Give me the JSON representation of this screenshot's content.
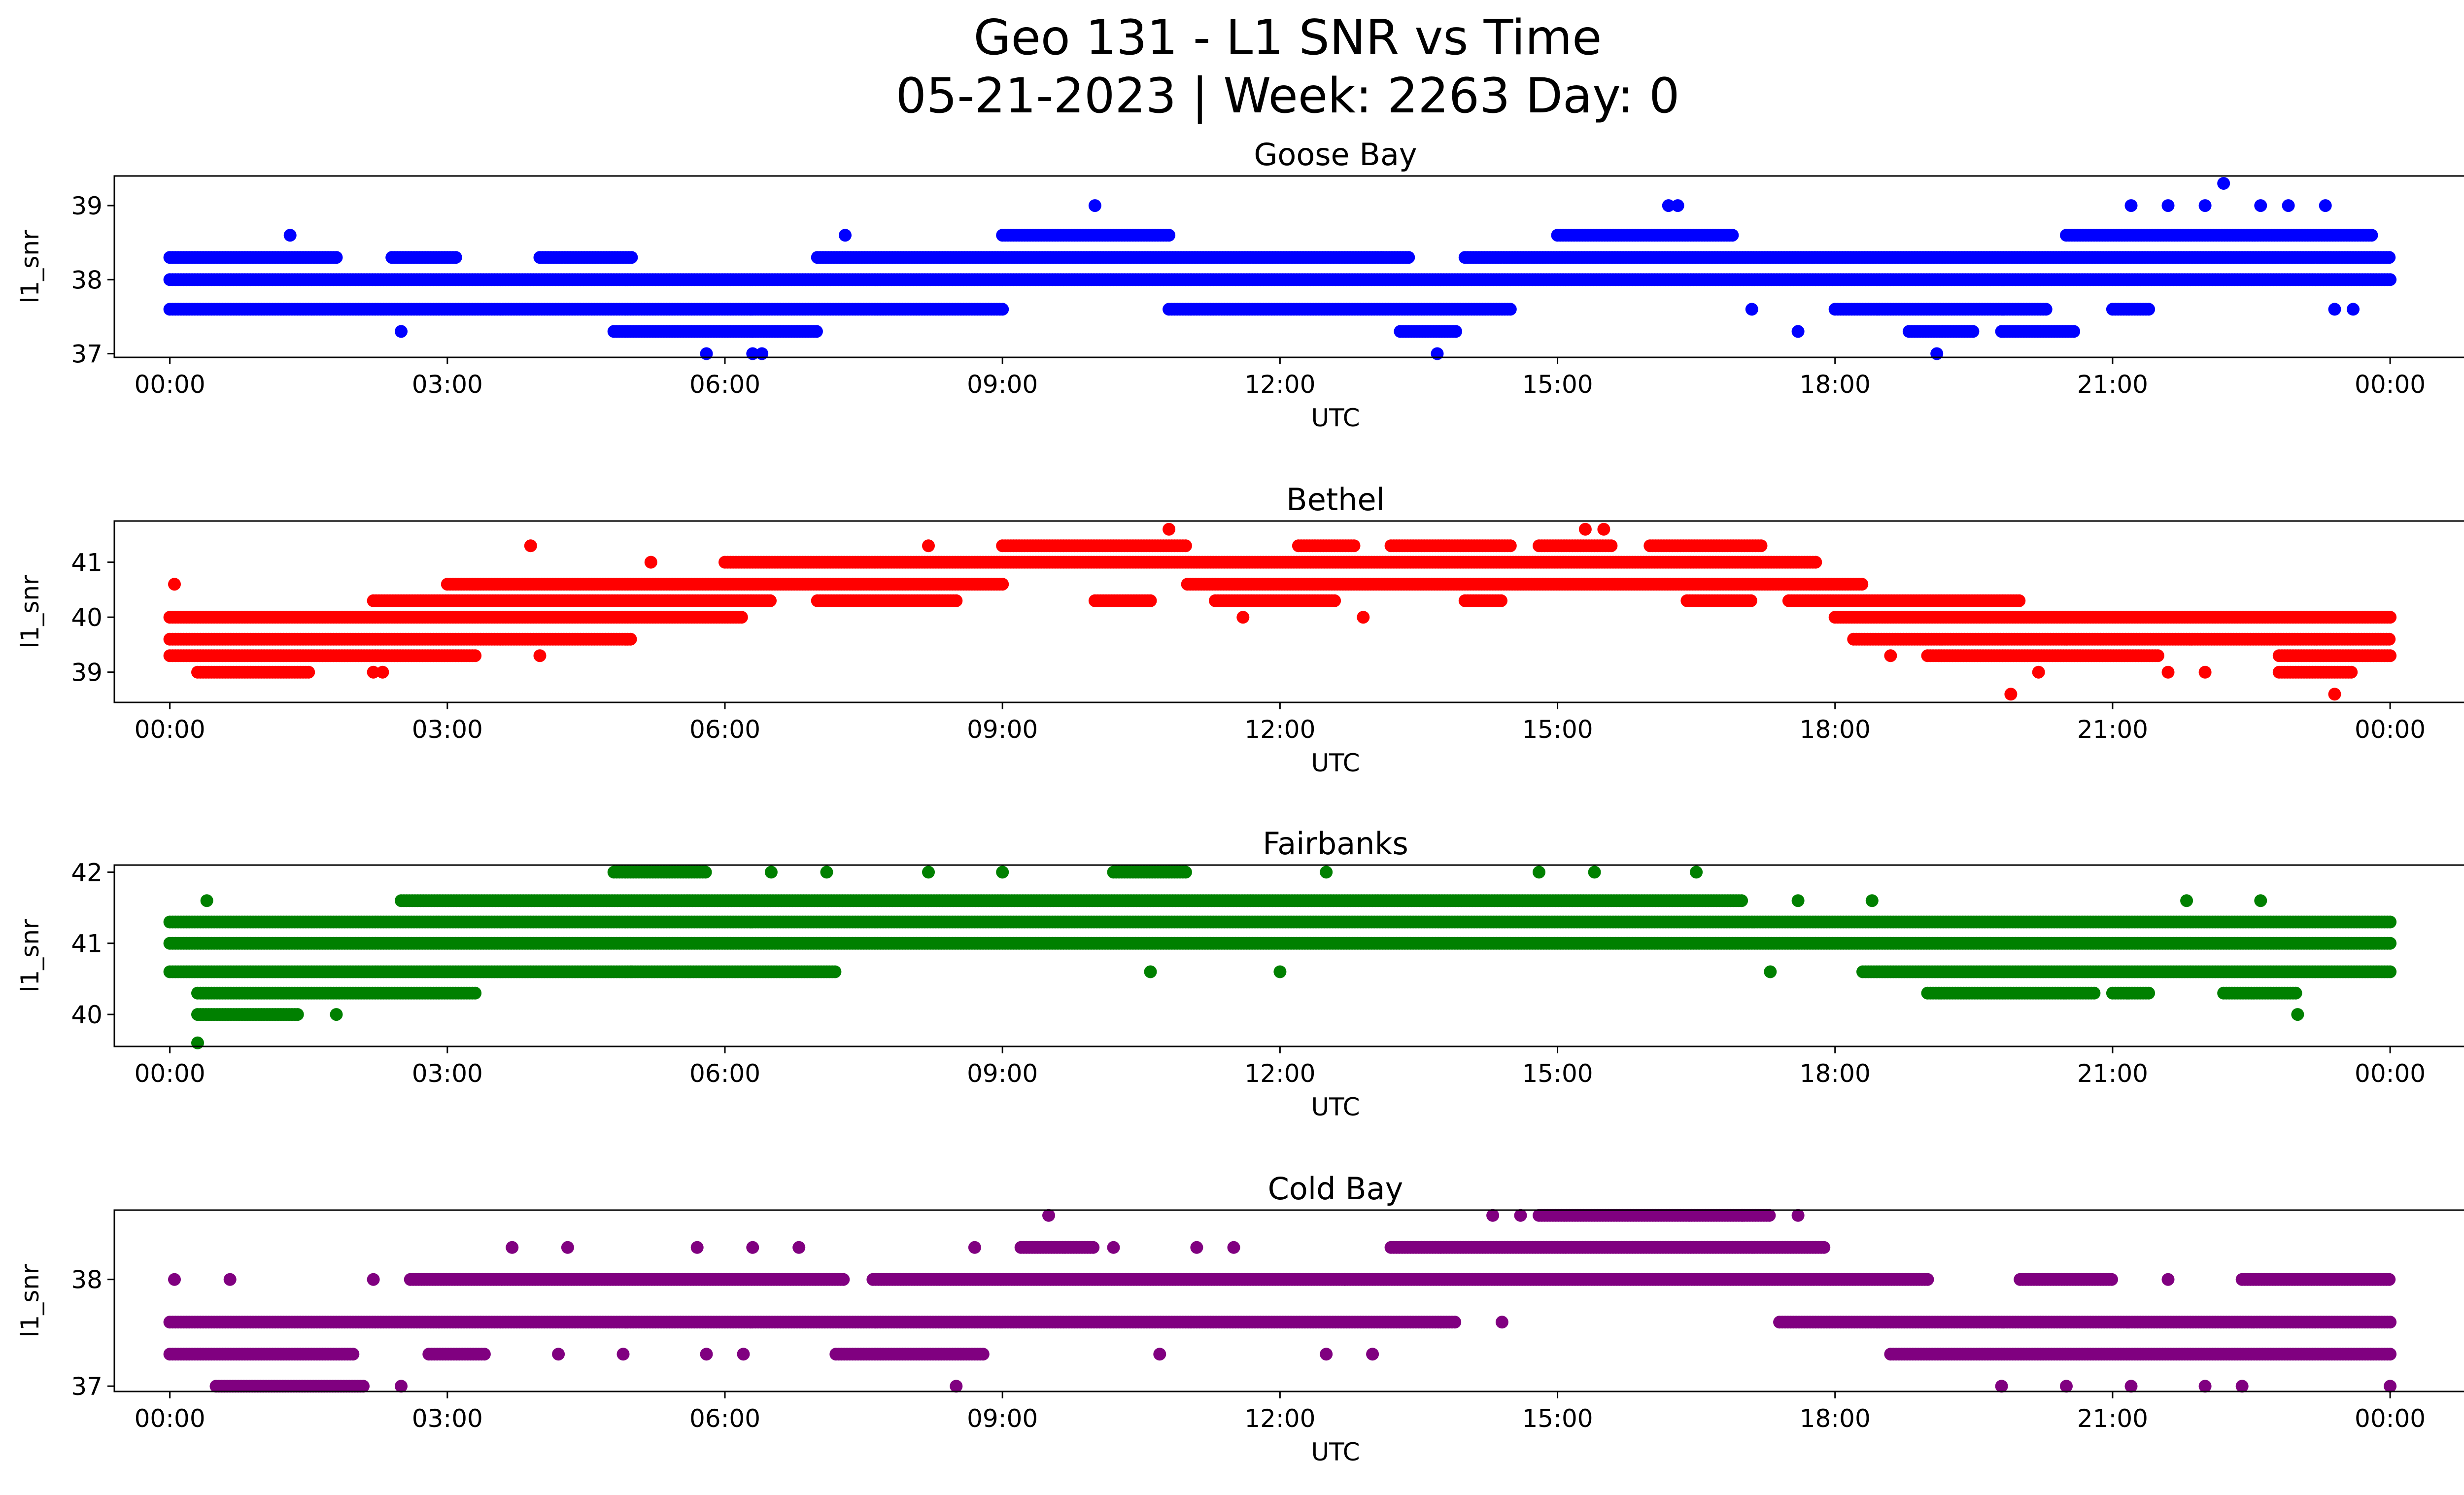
{
  "figure": {
    "title_line1": "Geo 131 - L1 SNR vs Time",
    "title_line2": "05-21-2023 | Week: 2263 Day: 0"
  },
  "chart_data": [
    {
      "type": "scatter",
      "title": "Goose Bay",
      "xlabel": "UTC",
      "ylabel": "l1_snr",
      "color": "#0000ff",
      "x_ticks": [
        "00:00",
        "03:00",
        "06:00",
        "09:00",
        "12:00",
        "15:00",
        "18:00",
        "21:00",
        "00:00"
      ],
      "xlim_hours": [
        -0.6,
        25.8
      ],
      "ylim": [
        36.95,
        39.4
      ],
      "y_ticks": [
        37,
        38,
        39
      ],
      "bands": [
        {
          "y": 38.0,
          "segments": [
            [
              0,
              24
            ]
          ]
        },
        {
          "y": 38.3,
          "segments": [
            [
              0,
              1.8
            ],
            [
              2.4,
              3.1
            ],
            [
              4.0,
              5.0
            ],
            [
              7.0,
              13.4
            ],
            [
              14.0,
              24
            ]
          ]
        },
        {
          "y": 37.6,
          "segments": [
            [
              0,
              9.0
            ],
            [
              10.8,
              14.5
            ],
            [
              18.0,
              20.3
            ],
            [
              21.0,
              21.4
            ]
          ]
        },
        {
          "y": 38.6,
          "segments": [
            [
              9.0,
              10.8
            ],
            [
              15.0,
              16.9
            ],
            [
              20.5,
              23.8
            ]
          ]
        },
        {
          "y": 37.3,
          "segments": [
            [
              4.8,
              7.0
            ],
            [
              13.3,
              13.9
            ],
            [
              18.8,
              19.5
            ],
            [
              19.8,
              20.6
            ]
          ]
        }
      ],
      "outliers": [
        [
          1.3,
          38.6
        ],
        [
          2.5,
          37.3
        ],
        [
          6.3,
          37.3
        ],
        [
          5.8,
          37.0
        ],
        [
          6.3,
          37.0
        ],
        [
          6.4,
          37.0
        ],
        [
          7.3,
          38.6
        ],
        [
          10.0,
          39.0
        ],
        [
          13.1,
          38.3
        ],
        [
          13.7,
          37.0
        ],
        [
          16.2,
          39.0
        ],
        [
          16.3,
          39.0
        ],
        [
          17.1,
          37.6
        ],
        [
          17.6,
          37.3
        ],
        [
          19.1,
          37.0
        ],
        [
          21.2,
          39.0
        ],
        [
          21.6,
          39.0
        ],
        [
          22.0,
          39.0
        ],
        [
          22.2,
          39.3
        ],
        [
          22.6,
          39.0
        ],
        [
          22.9,
          39.0
        ],
        [
          23.4,
          37.6
        ],
        [
          23.6,
          37.6
        ],
        [
          23.3,
          39.0
        ]
      ]
    },
    {
      "type": "scatter",
      "title": "Bethel",
      "xlabel": "UTC",
      "ylabel": "l1_snr",
      "color": "#ff0000",
      "x_ticks": [
        "00:00",
        "03:00",
        "06:00",
        "09:00",
        "12:00",
        "15:00",
        "18:00",
        "21:00",
        "00:00"
      ],
      "xlim_hours": [
        -0.6,
        25.8
      ],
      "ylim": [
        38.45,
        41.75
      ],
      "y_ticks": [
        39,
        40,
        41
      ],
      "bands": [
        {
          "y": 39.6,
          "segments": [
            [
              0,
              5.0
            ],
            [
              18.2,
              24
            ]
          ]
        },
        {
          "y": 40.0,
          "segments": [
            [
              0,
              6.2
            ],
            [
              18.0,
              24
            ]
          ]
        },
        {
          "y": 39.3,
          "segments": [
            [
              0,
              3.3
            ],
            [
              19.0,
              21.5
            ],
            [
              22.8,
              24
            ]
          ]
        },
        {
          "y": 40.3,
          "segments": [
            [
              2.2,
              6.5
            ],
            [
              7.0,
              8.5
            ],
            [
              17.5,
              20.0
            ]
          ]
        },
        {
          "y": 40.6,
          "segments": [
            [
              3.0,
              9.0
            ],
            [
              11.0,
              18.3
            ]
          ]
        },
        {
          "y": 41.0,
          "segments": [
            [
              6.0,
              17.8
            ]
          ]
        },
        {
          "y": 41.3,
          "segments": [
            [
              9.0,
              11.0
            ],
            [
              12.2,
              12.8
            ],
            [
              13.2,
              14.5
            ],
            [
              14.8,
              15.6
            ],
            [
              16.0,
              17.2
            ]
          ]
        },
        {
          "y": 40.3,
          "segments": [
            [
              10.0,
              10.6
            ],
            [
              11.3,
              12.6
            ],
            [
              14.0,
              14.4
            ],
            [
              16.4,
              17.1
            ]
          ]
        },
        {
          "y": 39.0,
          "segments": [
            [
              0.3,
              1.5
            ],
            [
              22.8,
              23.6
            ]
          ]
        }
      ],
      "outliers": [
        [
          0.05,
          40.6
        ],
        [
          3.9,
          41.3
        ],
        [
          4.0,
          39.3
        ],
        [
          5.2,
          41.0
        ],
        [
          8.2,
          41.3
        ],
        [
          10.8,
          41.6
        ],
        [
          11.6,
          40.0
        ],
        [
          12.9,
          40.0
        ],
        [
          15.3,
          41.6
        ],
        [
          15.5,
          41.6
        ],
        [
          18.6,
          39.3
        ],
        [
          19.9,
          38.6
        ],
        [
          20.2,
          39.0
        ],
        [
          23.4,
          38.6
        ],
        [
          21.6,
          39.0
        ],
        [
          22.0,
          39.0
        ],
        [
          2.2,
          39.0
        ],
        [
          2.3,
          39.0
        ]
      ]
    },
    {
      "type": "scatter",
      "title": "Fairbanks",
      "xlabel": "UTC",
      "ylabel": "l1_snr",
      "color": "#008000",
      "x_ticks": [
        "00:00",
        "03:00",
        "06:00",
        "09:00",
        "12:00",
        "15:00",
        "18:00",
        "21:00",
        "00:00"
      ],
      "xlim_hours": [
        -0.6,
        25.8
      ],
      "ylim": [
        39.55,
        42.1
      ],
      "y_ticks": [
        40,
        41,
        42
      ],
      "bands": [
        {
          "y": 41.3,
          "segments": [
            [
              0,
              24
            ]
          ]
        },
        {
          "y": 41.0,
          "segments": [
            [
              0,
              24
            ]
          ]
        },
        {
          "y": 40.6,
          "segments": [
            [
              0,
              5.0
            ],
            [
              5.0,
              7.2
            ],
            [
              18.3,
              24
            ]
          ]
        },
        {
          "y": 40.3,
          "segments": [
            [
              0.3,
              3.3
            ],
            [
              19.0,
              20.8
            ],
            [
              21.0,
              21.4
            ],
            [
              22.2,
              23.0
            ]
          ]
        },
        {
          "y": 41.6,
          "segments": [
            [
              2.5,
              17.0
            ]
          ]
        },
        {
          "y": 42.0,
          "segments": [
            [
              4.8,
              5.8
            ],
            [
              10.2,
              11.0
            ]
          ]
        },
        {
          "y": 40.0,
          "segments": [
            [
              0.3,
              1.4
            ]
          ]
        }
      ],
      "outliers": [
        [
          0.4,
          41.6
        ],
        [
          0.3,
          39.6
        ],
        [
          1.8,
          40.0
        ],
        [
          6.5,
          42.0
        ],
        [
          7.1,
          42.0
        ],
        [
          8.2,
          42.0
        ],
        [
          9.0,
          42.0
        ],
        [
          12.5,
          42.0
        ],
        [
          14.8,
          42.0
        ],
        [
          15.4,
          42.0
        ],
        [
          16.5,
          42.0
        ],
        [
          17.6,
          41.6
        ],
        [
          18.4,
          41.6
        ],
        [
          21.8,
          41.6
        ],
        [
          22.6,
          41.6
        ],
        [
          23.0,
          40.0
        ],
        [
          17.3,
          40.6
        ],
        [
          12.0,
          40.6
        ],
        [
          10.6,
          40.6
        ]
      ]
    },
    {
      "type": "scatter",
      "title": "Cold Bay",
      "xlabel": "UTC",
      "ylabel": "l1_snr",
      "color": "#800080",
      "x_ticks": [
        "00:00",
        "03:00",
        "06:00",
        "09:00",
        "12:00",
        "15:00",
        "18:00",
        "21:00",
        "00:00"
      ],
      "xlim_hours": [
        -0.6,
        25.8
      ],
      "ylim": [
        36.95,
        38.65
      ],
      "y_ticks": [
        37,
        38
      ],
      "bands": [
        {
          "y": 37.6,
          "segments": [
            [
              0,
              13.9
            ],
            [
              17.4,
              24
            ]
          ]
        },
        {
          "y": 37.3,
          "segments": [
            [
              0,
              2.0
            ],
            [
              2.8,
              3.4
            ],
            [
              7.2,
              8.8
            ],
            [
              18.6,
              24
            ]
          ]
        },
        {
          "y": 38.0,
          "segments": [
            [
              2.6,
              7.3
            ],
            [
              7.6,
              19.0
            ],
            [
              20.0,
              21.0
            ],
            [
              22.4,
              24
            ]
          ]
        },
        {
          "y": 37.0,
          "segments": [
            [
              0.5,
              2.1
            ]
          ]
        },
        {
          "y": 38.3,
          "segments": [
            [
              9.2,
              10.0
            ],
            [
              13.2,
              17.9
            ]
          ]
        },
        {
          "y": 38.6,
          "segments": [
            [
              14.8,
              17.3
            ]
          ]
        }
      ],
      "outliers": [
        [
          0.05,
          38.0
        ],
        [
          0.65,
          38.0
        ],
        [
          2.2,
          38.0
        ],
        [
          2.5,
          37.0
        ],
        [
          3.7,
          38.3
        ],
        [
          4.3,
          38.3
        ],
        [
          5.7,
          38.3
        ],
        [
          6.3,
          38.3
        ],
        [
          6.8,
          38.3
        ],
        [
          8.5,
          37.0
        ],
        [
          8.7,
          38.3
        ],
        [
          9.5,
          38.6
        ],
        [
          10.2,
          38.3
        ],
        [
          11.1,
          38.3
        ],
        [
          11.5,
          38.3
        ],
        [
          14.4,
          37.6
        ],
        [
          14.3,
          38.6
        ],
        [
          14.6,
          38.6
        ],
        [
          17.0,
          38.6
        ],
        [
          17.6,
          38.6
        ],
        [
          19.8,
          37.0
        ],
        [
          20.5,
          37.0
        ],
        [
          21.2,
          37.0
        ],
        [
          21.6,
          38.0
        ],
        [
          22.0,
          37.0
        ],
        [
          22.4,
          37.0
        ],
        [
          24.0,
          37.0
        ],
        [
          4.2,
          37.3
        ],
        [
          4.9,
          37.3
        ],
        [
          5.8,
          37.3
        ],
        [
          6.2,
          37.3
        ],
        [
          10.7,
          37.3
        ],
        [
          12.5,
          37.3
        ],
        [
          13.0,
          37.3
        ],
        [
          12.7,
          38.0
        ]
      ]
    }
  ]
}
